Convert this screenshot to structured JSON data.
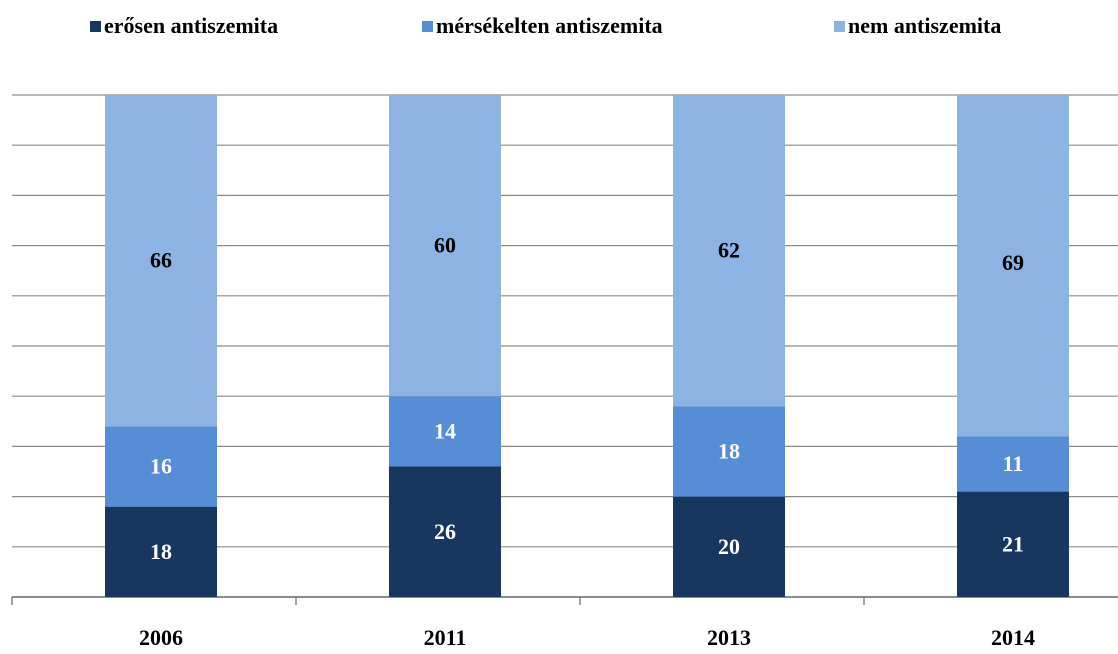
{
  "chart_data": {
    "type": "stacked_bar",
    "categories": [
      "2006",
      "2011",
      "2013",
      "2014"
    ],
    "series": [
      {
        "name": "erősen antiszemita",
        "color": "#17375e",
        "values": [
          18,
          26,
          20,
          21
        ]
      },
      {
        "name": "mérsékelten antiszemita",
        "color": "#558ed5",
        "values": [
          16,
          14,
          18,
          11
        ]
      },
      {
        "name": "nem antiszemita",
        "color": "#8db3e2",
        "values": [
          66,
          60,
          62,
          69
        ]
      }
    ],
    "ylim": [
      0,
      100
    ],
    "yticks": [
      0,
      10,
      20,
      30,
      40,
      50,
      60,
      70,
      80,
      90,
      100
    ],
    "grid": true,
    "legend": "top"
  }
}
